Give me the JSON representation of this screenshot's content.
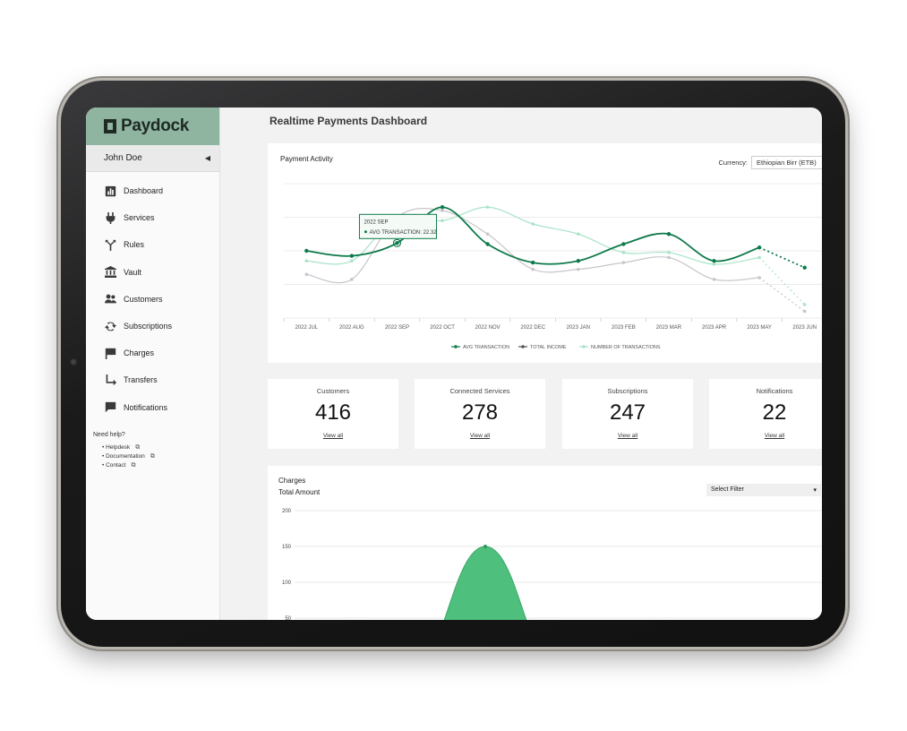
{
  "brand": {
    "name": "Paydock"
  },
  "user": {
    "name": "John Doe"
  },
  "sidebar": {
    "items": [
      {
        "label": "Dashboard",
        "icon": "bar-chart-icon"
      },
      {
        "label": "Services",
        "icon": "plug-icon"
      },
      {
        "label": "Rules",
        "icon": "fork-icon"
      },
      {
        "label": "Vault",
        "icon": "bank-icon"
      },
      {
        "label": "Customers",
        "icon": "people-icon"
      },
      {
        "label": "Subscriptions",
        "icon": "sync-icon"
      },
      {
        "label": "Charges",
        "icon": "flag-icon"
      },
      {
        "label": "Transfers",
        "icon": "transfer-arrow-icon"
      },
      {
        "label": "Notifications",
        "icon": "chat-icon"
      }
    ],
    "help": {
      "title": "Need help?",
      "links": [
        "• Helpdesk",
        "• Documentation",
        "• Contact"
      ]
    }
  },
  "page": {
    "title": "Realtime Payments Dashboard"
  },
  "activity": {
    "title": "Payment Activity",
    "currency_label": "Currency:",
    "currency_value": "Ethiopian Birr (ETB)",
    "tooltip": {
      "title": "2022 SEP",
      "line": "AVG TRANSACTION: 22.32"
    }
  },
  "stats": [
    {
      "title": "Customers",
      "value": "416",
      "link": "View all"
    },
    {
      "title": "Connected Services",
      "value": "278",
      "link": "View all"
    },
    {
      "title": "Subscriptions",
      "value": "247",
      "link": "View all"
    },
    {
      "title": "Notifications",
      "value": "22",
      "link": "View all"
    }
  ],
  "charges": {
    "title": "Charges",
    "subtitle": "Total Amount",
    "filter_placeholder": "Select Filter"
  },
  "colors": {
    "accent_dark": "#0e7a4a",
    "accent_mid": "#4fbf7e",
    "accent_light": "#a8e3c8",
    "income_gray": "#c9c4cc",
    "logo_bg": "#8fb5a1"
  },
  "chart_data": [
    {
      "type": "line",
      "title": "Payment Activity",
      "categories": [
        "2022 JUL",
        "2022 AUG",
        "2022 SEP",
        "2022 OCT",
        "2022 NOV",
        "2022 DEC",
        "2023 JAN",
        "2023 FEB",
        "2023 MAR",
        "2023 APR",
        "2023 MAY",
        "2023 JUN"
      ],
      "series": [
        {
          "name": "AVG TRANSACTION",
          "color": "#0e7a4a",
          "values": [
            20,
            18.5,
            22.32,
            33,
            22,
            16.5,
            17,
            22,
            25,
            17,
            21,
            15
          ]
        },
        {
          "name": "TOTAL INCOME",
          "color": "#c9c4cc",
          "values": [
            13,
            11.5,
            30,
            32,
            25,
            14.5,
            14.5,
            16.5,
            18,
            11.5,
            12,
            2
          ]
        },
        {
          "name": "NUMBER OF TRANSACTIONS",
          "color": "#a8e3c8",
          "values": [
            17,
            17,
            30,
            29,
            33,
            28,
            25,
            19.5,
            19.5,
            16,
            18,
            4
          ]
        }
      ],
      "ylim": [
        0,
        40
      ],
      "grid": true,
      "legend": "bottom"
    },
    {
      "type": "area",
      "title": "Charges",
      "ylabel": "Total Amount",
      "yticks": [
        200,
        150,
        100,
        50
      ],
      "ylim": [
        0,
        200
      ],
      "series": [
        {
          "name": "",
          "color": "#4fbf7e",
          "x": [
            0,
            0.8,
            1,
            1.2,
            2
          ],
          "values": [
            0,
            20,
            150,
            20,
            0
          ]
        }
      ],
      "grid": true
    }
  ]
}
